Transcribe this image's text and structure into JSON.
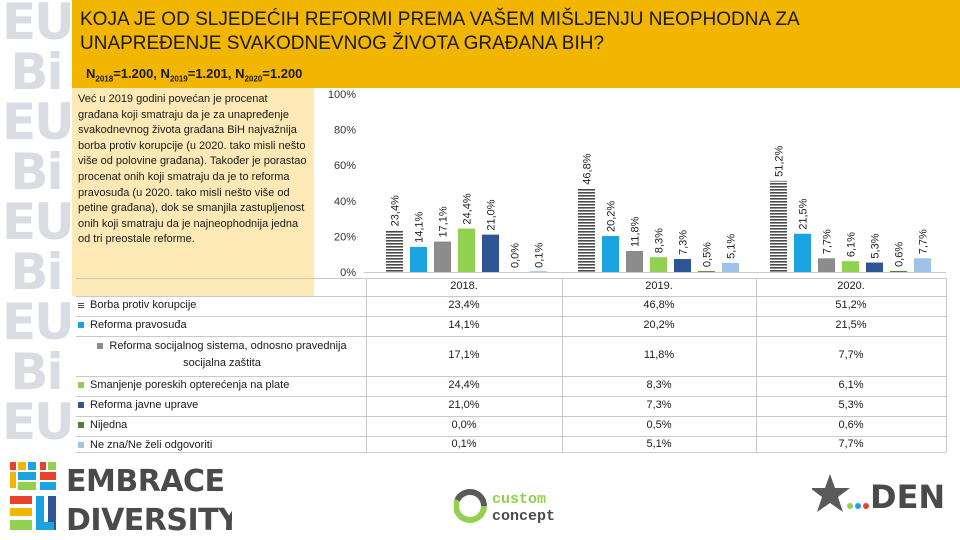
{
  "header": {
    "title": "KOJA JE OD SLJEDEĆIH REFORMI PREMA VAŠEM MIŠLJENJU NEOPHODNA ZA UNAPREĐENJE SVAKODNEVNOG ŽIVOTA GRAĐANA BIH?",
    "sample": {
      "n_label": "N",
      "y1": "2018",
      "v1": "=1.200, ",
      "y2": "2019",
      "v2": "=1.201, ",
      "y3": "2020",
      "v3": "=1.200"
    }
  },
  "note": "Već u 2019 godini povećan je procenat građana koji smatraju da je za unapređenje svakodnevnog života građana BiH najvažnija borba protiv korupcije (u 2020. tako misli nešto više od polovine građana). Također je porastao procenat onih koji smatraju da je to reforma pravosuđa (u 2020. tako misli nešto više od petine građana), dok se smanjila zastupljenost onih koji smatraju da je najneophodnija jedna od tri preostale reforme.",
  "chart_data": {
    "type": "bar",
    "categories": [
      "2018.",
      "2019.",
      "2020."
    ],
    "ylim": [
      0,
      100
    ],
    "yticks": [
      "0%",
      "20%",
      "40%",
      "60%",
      "80%",
      "100%"
    ],
    "series": [
      {
        "name": "Borba protiv korupcije",
        "color": "#5a5a5a",
        "values": [
          23.4,
          46.8,
          51.2
        ],
        "labels": [
          "23,4%",
          "46,8%",
          "51,2%"
        ]
      },
      {
        "name": "Reforma pravosuđa",
        "color": "#1aa3e0",
        "values": [
          14.1,
          20.2,
          21.5
        ],
        "labels": [
          "14,1%",
          "20,2%",
          "21,5%"
        ]
      },
      {
        "name": "Reforma socijalnog sistema, odnosno pravednija socijalna zaštita",
        "color": "#8c8c8c",
        "values": [
          17.1,
          11.8,
          7.7
        ],
        "labels": [
          "17,1%",
          "11,8%",
          "7,7%"
        ]
      },
      {
        "name": "Smanjenje poreskih opterećenja na plate",
        "color": "#92d050",
        "values": [
          24.4,
          8.3,
          6.1
        ],
        "labels": [
          "24,4%",
          "8,3%",
          "6,1%"
        ]
      },
      {
        "name": "Reforma javne uprave",
        "color": "#2f5597",
        "values": [
          21.0,
          7.3,
          5.3
        ],
        "labels": [
          "21,0%",
          "7,3%",
          "5,3%"
        ]
      },
      {
        "name": "Nijedna",
        "color": "#548235",
        "values": [
          0.0,
          0.5,
          0.6
        ],
        "labels": [
          "0,0%",
          "0,5%",
          "0,6%"
        ]
      },
      {
        "name": "Ne zna/Ne želi odgovoriti",
        "color": "#9dc3e6",
        "values": [
          0.1,
          5.1,
          7.7
        ],
        "labels": [
          "0,1%",
          "5,1%",
          "7,7%"
        ]
      }
    ]
  },
  "logos": {
    "embrace_line1": "EMBRACE",
    "embrace_line2": "DIVERSITY",
    "custom_line1": "custom",
    "custom_line2": "concept",
    "cden_text": "DEN",
    "strip_letters": [
      "EU",
      "Bi",
      "EU",
      "Bi",
      "EU",
      "Bi",
      "EU",
      "Bi",
      "EU"
    ],
    "strip_letters_bottom": [
      "Bi",
      "EU"
    ]
  }
}
